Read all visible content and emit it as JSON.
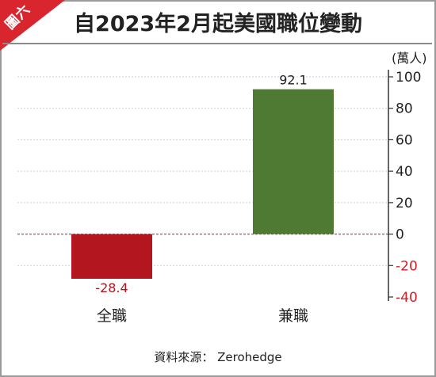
{
  "badge": {
    "label": "圖六",
    "color": "#d9252e"
  },
  "header": {
    "title": "自2023年2月起美國職位變動"
  },
  "chart_data": {
    "type": "bar",
    "title": "自2023年2月起美國職位變動",
    "xlabel": "",
    "ylabel": "(萬人)",
    "categories": [
      "全職",
      "兼職"
    ],
    "values": [
      -28.4,
      92.1
    ],
    "value_labels": [
      "-28.4",
      "92.1"
    ],
    "bar_colors": [
      "#b3161f",
      "#4f7a33"
    ],
    "ylim": [
      -40,
      110
    ],
    "yticks": [
      -40,
      -20,
      0,
      20,
      40,
      60,
      80,
      100
    ],
    "ytick_labels": [
      "-40",
      "-20",
      "0",
      "20",
      "40",
      "60",
      "80",
      "100"
    ],
    "negative_tick_color": "#d21f24",
    "yaxis_side": "right",
    "zero_line": "dashed red",
    "grid": "horizontal dotted"
  },
  "footer": {
    "source": "資料來源： Zerohedge"
  }
}
